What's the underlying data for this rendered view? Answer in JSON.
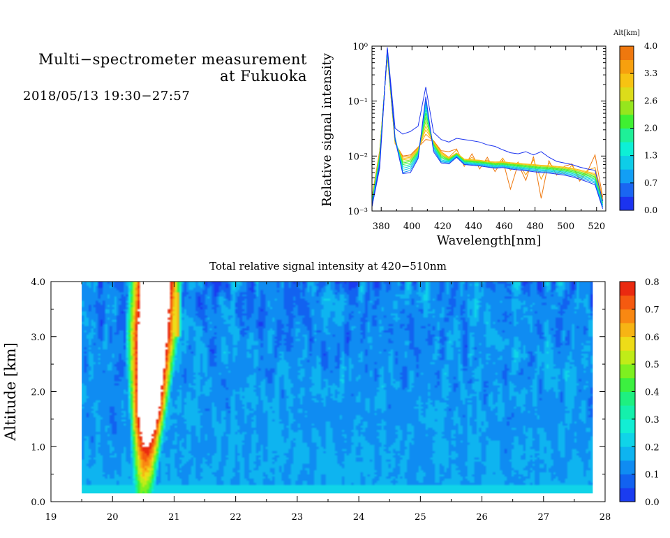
{
  "header": {
    "title_line1": "Multi−spectrometer measurement",
    "title_line2": "at Fukuoka",
    "datetime": "2018/05/13 19:30−27:57"
  },
  "chart_data": [
    {
      "type": "line",
      "ylabel": "Relative signal intensity",
      "xlabel": "Wavelength[nm]",
      "xlim": [
        374,
        526
      ],
      "ylim": [
        0.001,
        1
      ],
      "yscale": "log",
      "xticks": [
        380,
        400,
        420,
        440,
        460,
        480,
        500,
        520
      ],
      "yticks": [
        {
          "value": 0.001,
          "label": "10⁻³"
        },
        {
          "value": 0.01,
          "label": "10⁻²"
        },
        {
          "value": 0.1,
          "label": "10⁻¹"
        },
        {
          "value": 1,
          "label": "10⁰"
        }
      ],
      "x": [
        374,
        379,
        384,
        389,
        394,
        399,
        404,
        409,
        414,
        419,
        424,
        429,
        434,
        439,
        444,
        449,
        454,
        459,
        464,
        469,
        474,
        479,
        484,
        489,
        494,
        499,
        504,
        509,
        514,
        519,
        524
      ],
      "series_note": "one profile per altitude, colored by altitude colorbar",
      "series": [
        {
          "alt": 0.0,
          "values": [
            0.0012,
            0.006,
            0.95,
            0.032,
            0.025,
            0.028,
            0.035,
            0.18,
            0.027,
            0.02,
            0.018,
            0.021,
            0.02,
            0.019,
            0.018,
            0.016,
            0.015,
            0.013,
            0.0115,
            0.011,
            0.012,
            0.0105,
            0.012,
            0.0095,
            0.008,
            0.0075,
            0.007,
            0.0063,
            0.0058,
            0.0055,
            0.0015
          ]
        },
        {
          "alt": 0.3,
          "values": [
            0.0012,
            0.007,
            0.9,
            0.02,
            0.0048,
            0.005,
            0.009,
            0.12,
            0.012,
            0.0075,
            0.0072,
            0.0095,
            0.007,
            0.0068,
            0.0066,
            0.0063,
            0.006,
            0.0062,
            0.0058,
            0.0056,
            0.0054,
            0.0052,
            0.005,
            0.0049,
            0.0047,
            0.0045,
            0.0042,
            0.0038,
            0.0034,
            0.003,
            0.0011
          ]
        },
        {
          "alt": 0.7,
          "values": [
            0.0013,
            0.0075,
            0.88,
            0.021,
            0.005,
            0.0055,
            0.0095,
            0.1,
            0.013,
            0.0078,
            0.0075,
            0.0098,
            0.0072,
            0.007,
            0.0068,
            0.0065,
            0.0062,
            0.0064,
            0.006,
            0.0058,
            0.0056,
            0.0054,
            0.0052,
            0.0051,
            0.0049,
            0.0047,
            0.0044,
            0.004,
            0.0036,
            0.0032,
            0.0012
          ]
        },
        {
          "alt": 1.0,
          "values": [
            0.0013,
            0.008,
            0.85,
            0.022,
            0.0055,
            0.006,
            0.01,
            0.09,
            0.014,
            0.008,
            0.0078,
            0.01,
            0.0074,
            0.0072,
            0.007,
            0.0067,
            0.0064,
            0.0066,
            0.0062,
            0.006,
            0.0058,
            0.0056,
            0.0054,
            0.0053,
            0.0051,
            0.0049,
            0.0046,
            0.0042,
            0.0038,
            0.0034,
            0.0012
          ]
        },
        {
          "alt": 1.3,
          "values": [
            0.0014,
            0.0085,
            0.82,
            0.021,
            0.006,
            0.0065,
            0.0105,
            0.08,
            0.0145,
            0.0085,
            0.008,
            0.0102,
            0.0076,
            0.0074,
            0.0072,
            0.0069,
            0.0066,
            0.0067,
            0.0064,
            0.0062,
            0.006,
            0.0058,
            0.0056,
            0.0055,
            0.0053,
            0.0051,
            0.0048,
            0.0044,
            0.004,
            0.0036,
            0.0013
          ]
        },
        {
          "alt": 1.7,
          "values": [
            0.0014,
            0.009,
            0.8,
            0.02,
            0.0065,
            0.007,
            0.011,
            0.07,
            0.015,
            0.009,
            0.0082,
            0.0104,
            0.0078,
            0.0076,
            0.0074,
            0.0071,
            0.0068,
            0.0069,
            0.0066,
            0.0064,
            0.0062,
            0.006,
            0.0058,
            0.0057,
            0.0055,
            0.0053,
            0.005,
            0.0046,
            0.0042,
            0.0038,
            0.0013
          ]
        },
        {
          "alt": 2.0,
          "values": [
            0.0015,
            0.0095,
            0.78,
            0.02,
            0.007,
            0.0075,
            0.0115,
            0.06,
            0.016,
            0.0095,
            0.0084,
            0.0106,
            0.008,
            0.0078,
            0.0076,
            0.0073,
            0.007,
            0.0071,
            0.0068,
            0.0066,
            0.0064,
            0.0062,
            0.006,
            0.0059,
            0.0057,
            0.0055,
            0.0052,
            0.0048,
            0.0044,
            0.004,
            0.0014
          ]
        },
        {
          "alt": 2.3,
          "values": [
            0.0015,
            0.01,
            0.76,
            0.019,
            0.0075,
            0.008,
            0.012,
            0.05,
            0.0165,
            0.01,
            0.0086,
            0.0108,
            0.0082,
            0.008,
            0.0078,
            0.0075,
            0.0072,
            0.0073,
            0.007,
            0.0068,
            0.0066,
            0.0064,
            0.0062,
            0.0061,
            0.0059,
            0.0057,
            0.0054,
            0.005,
            0.0046,
            0.0042,
            0.0014
          ]
        },
        {
          "alt": 2.6,
          "values": [
            0.0016,
            0.0105,
            0.74,
            0.019,
            0.008,
            0.0085,
            0.0125,
            0.042,
            0.017,
            0.0105,
            0.0088,
            0.011,
            0.0084,
            0.0082,
            0.008,
            0.0077,
            0.0074,
            0.0075,
            0.0072,
            0.007,
            0.0068,
            0.0066,
            0.0064,
            0.0063,
            0.0061,
            0.0059,
            0.0056,
            0.0052,
            0.0048,
            0.0044,
            0.0015
          ]
        },
        {
          "alt": 3.0,
          "values": [
            0.0016,
            0.011,
            0.72,
            0.018,
            0.0085,
            0.009,
            0.013,
            0.035,
            0.0175,
            0.011,
            0.009,
            0.0112,
            0.0086,
            0.0084,
            0.0082,
            0.0079,
            0.0076,
            0.0077,
            0.0074,
            0.0072,
            0.007,
            0.0068,
            0.0066,
            0.0065,
            0.0063,
            0.0061,
            0.0058,
            0.0054,
            0.005,
            0.0046,
            0.0015
          ]
        },
        {
          "alt": 3.3,
          "values": [
            0.0017,
            0.0115,
            0.7,
            0.018,
            0.009,
            0.0095,
            0.0135,
            0.03,
            0.018,
            0.0115,
            0.0092,
            0.0114,
            0.0088,
            0.0086,
            0.0084,
            0.008,
            0.0078,
            0.0079,
            0.0076,
            0.0074,
            0.0072,
            0.007,
            0.0068,
            0.0067,
            0.0065,
            0.0063,
            0.006,
            0.0056,
            0.0052,
            0.0048,
            0.0016
          ]
        },
        {
          "alt": 3.6,
          "values": [
            0.0017,
            0.012,
            0.68,
            0.017,
            0.0095,
            0.01,
            0.014,
            0.025,
            0.0185,
            0.012,
            0.0095,
            0.013,
            0.0075,
            0.0095,
            0.007,
            0.0085,
            0.0062,
            0.0092,
            0.0055,
            0.0078,
            0.0045,
            0.0086,
            0.0038,
            0.0074,
            0.0058,
            0.0048,
            0.0068,
            0.004,
            0.0055,
            0.0062,
            0.0017
          ]
        },
        {
          "alt": 3.9,
          "values": [
            0.0018,
            0.0125,
            0.66,
            0.017,
            0.01,
            0.0105,
            0.0145,
            0.02,
            0.019,
            0.0125,
            0.012,
            0.0135,
            0.0065,
            0.011,
            0.0058,
            0.0095,
            0.0052,
            0.0085,
            0.0025,
            0.0072,
            0.0036,
            0.0098,
            0.0017,
            0.0082,
            0.0045,
            0.0065,
            0.0072,
            0.0035,
            0.0052,
            0.0105,
            0.0018
          ]
        }
      ]
    },
    {
      "type": "heatmap",
      "title": "Total relative signal intensity at 420−510nm",
      "ylabel": "Altitude [km]",
      "xlabel": "",
      "xlim": [
        19,
        28
      ],
      "ylim": [
        0,
        4
      ],
      "xticks": [
        19,
        20,
        21,
        22,
        23,
        24,
        25,
        26,
        27,
        28
      ],
      "yticks": [
        {
          "value": 0,
          "label": "0.0"
        },
        {
          "value": 1,
          "label": "1.0"
        },
        {
          "value": 2,
          "label": "2.0"
        },
        {
          "value": 3,
          "label": "3.0"
        },
        {
          "value": 4,
          "label": "4.0"
        }
      ],
      "data_range_x": [
        19.5,
        27.8
      ],
      "data_range_y": [
        0.15,
        4.0
      ],
      "plume": {
        "center_x": 20.6,
        "half_width": 0.45,
        "max_value": 0.8,
        "saturated_above": 0.8
      },
      "secondary_plume": {
        "center_x": 21.05,
        "half_width": 0.08,
        "max_value": 0.8,
        "alt_range": [
          3.0,
          3.8
        ]
      },
      "surface_layer": {
        "alt_range": [
          0.15,
          0.32
        ],
        "value": 0.23
      },
      "background_value_low": 0.16,
      "background_value_high": 0.12
    }
  ],
  "colorbars": [
    {
      "label": "Alt[km]",
      "range": [
        0.0,
        4.0
      ],
      "tick_labels": [
        "0.0",
        "0.7",
        "1.3",
        "2.0",
        "2.6",
        "3.3",
        "4.0"
      ],
      "levels": 12,
      "colors": [
        "#1b33f0",
        "#1a66f2",
        "#129ff5",
        "#0ecde8",
        "#0df0d6",
        "#1ef098",
        "#3ff032",
        "#96e61d",
        "#dcdc1a",
        "#f7c312",
        "#f7a00e",
        "#ef780e"
      ]
    },
    {
      "range": [
        0.0,
        0.8
      ],
      "tick_labels": [
        "0.0",
        "0.1",
        "0.2",
        "0.3",
        "0.4",
        "0.5",
        "0.6",
        "0.7",
        "0.8"
      ],
      "levels": 16,
      "colors": [
        "#1a3cf0",
        "#1262f0",
        "#0f8cf2",
        "#0eb4f0",
        "#10d4e8",
        "#12eed4",
        "#14f0ac",
        "#1ef080",
        "#3cf040",
        "#7ef020",
        "#c0ec18",
        "#eedc18",
        "#f7b414",
        "#f98812",
        "#f55a10",
        "#ea2a10"
      ]
    }
  ]
}
